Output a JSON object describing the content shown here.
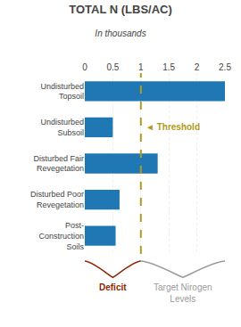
{
  "chart_data": {
    "type": "bar",
    "orientation": "horizontal",
    "title": "TOTAL N (LBS/AC)",
    "subtitle": "In thousands",
    "categories": [
      "Post-\nConstruction\nSoils",
      "Disturbed Poor\nRevegetation",
      "Disturbed Fair\nRevegetation",
      "Undisturbed\nSubsoil",
      "Undisturbed\nTopsoil"
    ],
    "values": [
      0.55,
      0.62,
      1.3,
      0.5,
      2.5
    ],
    "xlim": [
      0,
      2.5
    ],
    "xticks": [
      0,
      0.5,
      1,
      1.5,
      2,
      2.5
    ],
    "grid": true,
    "threshold": {
      "value": 1.0,
      "label": "◄ Threshold",
      "color": "#b09a20"
    },
    "annotations": [
      {
        "text": "Deficit",
        "color": "#8b2500"
      },
      {
        "text": "Target Nirogen\nLevels",
        "color": "#9a9a9a"
      }
    ]
  }
}
